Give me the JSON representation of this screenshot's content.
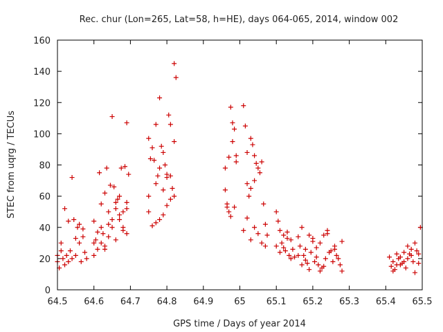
{
  "chart_data": {
    "type": "scatter",
    "title": "Rec. chur (Lon=265, Lat=58, h=HE), days 064-065, 2014, window 002",
    "xlabel": "GPS time / Days of year 2014",
    "ylabel": "STEC from uqrg / TECUs",
    "xlim": [
      64.5,
      65.5
    ],
    "ylim": [
      0,
      160
    ],
    "xticks": [
      64.5,
      64.6,
      64.7,
      64.8,
      64.9,
      65,
      65.1,
      65.2,
      65.3,
      65.4,
      65.5
    ],
    "xtick_labels": [
      "64.5",
      "64.6",
      "64.7",
      "64.8",
      "64.9",
      "65",
      "65.1",
      "65.2",
      "65.3",
      "65.4",
      "65.5"
    ],
    "yticks": [
      0,
      20,
      40,
      60,
      80,
      100,
      120,
      140,
      160
    ],
    "ytick_labels": [
      "0",
      "20",
      "40",
      "60",
      "80",
      "100",
      "120",
      "140",
      "160"
    ],
    "grid": false,
    "marker": "+",
    "marker_color": "#cc0000",
    "x": [
      64.5,
      64.5,
      64.505,
      64.51,
      64.51,
      64.515,
      64.52,
      64.52,
      64.525,
      64.53,
      64.53,
      64.535,
      64.54,
      64.54,
      64.545,
      64.55,
      64.55,
      64.555,
      64.56,
      64.56,
      64.565,
      64.57,
      64.57,
      64.575,
      64.58,
      64.6,
      64.6,
      64.605,
      64.61,
      64.61,
      64.615,
      64.62,
      64.62,
      64.625,
      64.63,
      64.63,
      64.635,
      64.64,
      64.64,
      64.645,
      64.65,
      64.65,
      64.655,
      64.66,
      64.66,
      64.665,
      64.67,
      64.67,
      64.675,
      64.68,
      64.68,
      64.685,
      64.69,
      64.69,
      64.695,
      64.6,
      64.62,
      64.63,
      64.64,
      64.65,
      64.66,
      64.67,
      64.68,
      64.69,
      64.69,
      64.75,
      64.755,
      64.76,
      64.765,
      64.77,
      64.775,
      64.78,
      64.785,
      64.79,
      64.795,
      64.8,
      64.805,
      64.81,
      64.815,
      64.82,
      64.825,
      64.75,
      64.76,
      64.77,
      64.78,
      64.79,
      64.8,
      64.81,
      64.82,
      64.75,
      64.77,
      64.79,
      64.81,
      64.82,
      64.78,
      64.8,
      64.96,
      64.965,
      64.97,
      64.975,
      64.98,
      64.985,
      64.99,
      64.96,
      64.97,
      64.98,
      64.99,
      64.965,
      64.975,
      64.985,
      65.01,
      65.015,
      65.02,
      65.025,
      65.03,
      65.035,
      65.04,
      65.045,
      65.05,
      65.055,
      65.06,
      65.065,
      65.07,
      65.075,
      65.01,
      65.02,
      65.03,
      65.04,
      65.05,
      65.06,
      65.07,
      65.02,
      65.03,
      65.04,
      65.1,
      65.105,
      65.11,
      65.115,
      65.12,
      65.125,
      65.13,
      65.135,
      65.14,
      65.145,
      65.15,
      65.1,
      65.11,
      65.12,
      65.13,
      65.14,
      65.16,
      65.165,
      65.17,
      65.175,
      65.18,
      65.185,
      65.19,
      65.195,
      65.2,
      65.205,
      65.21,
      65.215,
      65.22,
      65.225,
      65.23,
      65.235,
      65.24,
      65.245,
      65.25,
      65.255,
      65.26,
      65.265,
      65.27,
      65.275,
      65.28,
      65.16,
      65.18,
      65.2,
      65.22,
      65.24,
      65.26,
      65.28,
      65.17,
      65.19,
      65.21,
      65.23,
      65.41,
      65.415,
      65.42,
      65.425,
      65.43,
      65.435,
      65.44,
      65.445,
      65.45,
      65.455,
      65.46,
      65.465,
      65.47,
      65.475,
      65.48,
      65.485,
      65.49,
      65.495,
      65.42,
      65.44,
      65.46,
      65.48,
      65.43,
      65.45,
      65.47,
      65.49
    ],
    "y": [
      22,
      18,
      14,
      25,
      30,
      20,
      52,
      16,
      22,
      44,
      18,
      25,
      72,
      20,
      45,
      33,
      22,
      40,
      42,
      30,
      18,
      39,
      34,
      24,
      20,
      44,
      22,
      32,
      37,
      26,
      75,
      40,
      30,
      36,
      62,
      28,
      78,
      50,
      34,
      67,
      45,
      40,
      66,
      56,
      32,
      58,
      60,
      48,
      78,
      50,
      40,
      79,
      52,
      36,
      74,
      30,
      55,
      26,
      42,
      111,
      52,
      45,
      38,
      107,
      56,
      97,
      84,
      91,
      83,
      106,
      73,
      123,
      92,
      88,
      80,
      74,
      112,
      106,
      65,
      145,
      136,
      50,
      41,
      43,
      45,
      48,
      54,
      58,
      60,
      60,
      68,
      64,
      73,
      95,
      78,
      72,
      64,
      55,
      50,
      117,
      107,
      103,
      86,
      78,
      85,
      95,
      82,
      53,
      47,
      53,
      118,
      105,
      88,
      60,
      97,
      93,
      86,
      81,
      78,
      75,
      82,
      55,
      42,
      35,
      38,
      46,
      32,
      40,
      36,
      30,
      28,
      68,
      65,
      70,
      50,
      44,
      38,
      30,
      27,
      25,
      33,
      22,
      20,
      26,
      21,
      28,
      24,
      35,
      37,
      32,
      34,
      28,
      40,
      22,
      19,
      17,
      35,
      24,
      31,
      18,
      27,
      16,
      30,
      14,
      35,
      20,
      38,
      24,
      25,
      18,
      28,
      22,
      20,
      16,
      31,
      22,
      26,
      33,
      12,
      36,
      26,
      12,
      16,
      13,
      21,
      15,
      21,
      15,
      18,
      13,
      16,
      20,
      21,
      17,
      24,
      14,
      20,
      23,
      22,
      18,
      30,
      25,
      23,
      40,
      12,
      16,
      28,
      11,
      23,
      18,
      26,
      17
    ]
  }
}
